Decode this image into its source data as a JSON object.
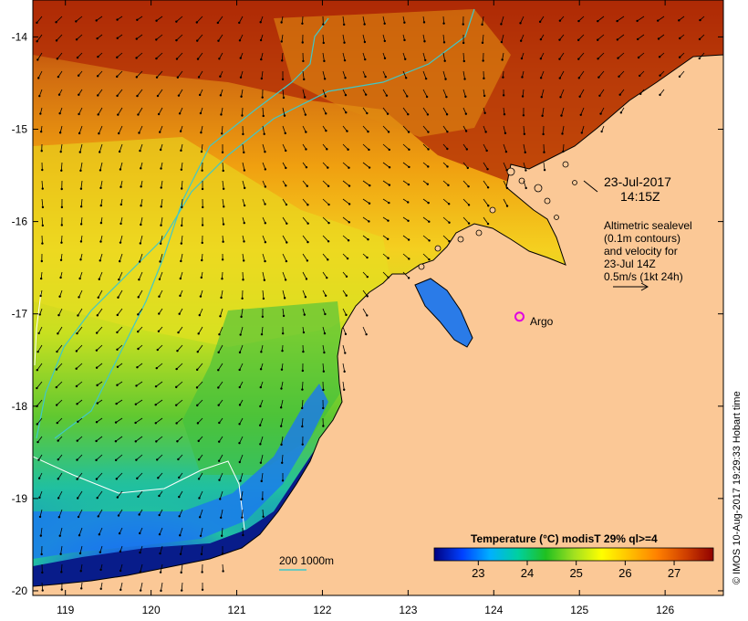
{
  "map": {
    "lon_ticks": [
      119,
      120,
      121,
      122,
      123,
      124,
      125,
      126
    ],
    "lat_ticks": [
      -14,
      -15,
      -16,
      -17,
      -18,
      -19,
      -20
    ],
    "lon_range": [
      118.62,
      126.68
    ],
    "lat_range": [
      -20.05,
      -13.6
    ]
  },
  "annotation": {
    "date": "23-Jul-2017",
    "time": "14:15Z",
    "legend_lines": [
      "Altimetric sealevel",
      "(0.1m contours)",
      "and velocity for",
      "23-Jul 14Z",
      "0.5m/s (1kt 24h)"
    ]
  },
  "argo": {
    "label": "Argo",
    "lon": 124.3,
    "lat": -17.03,
    "color": "#e000e0"
  },
  "isobath": {
    "label": "200  1000m",
    "color": "#40c8c8"
  },
  "colorbar": {
    "title": "Temperature (°C) modisT 29% ql>=4",
    "ticks": [
      23,
      24,
      25,
      26,
      27
    ],
    "range": [
      22.1,
      27.8
    ],
    "colors": [
      "#000080",
      "#0040ff",
      "#00b0ff",
      "#00d0a0",
      "#20c020",
      "#a0e020",
      "#ffff00",
      "#ffc000",
      "#ff8000",
      "#d04000",
      "#900000"
    ]
  },
  "land_color": "#fbc896",
  "credit": "© IMOS 10-Aug-2017 19:29:33 Hobart time"
}
